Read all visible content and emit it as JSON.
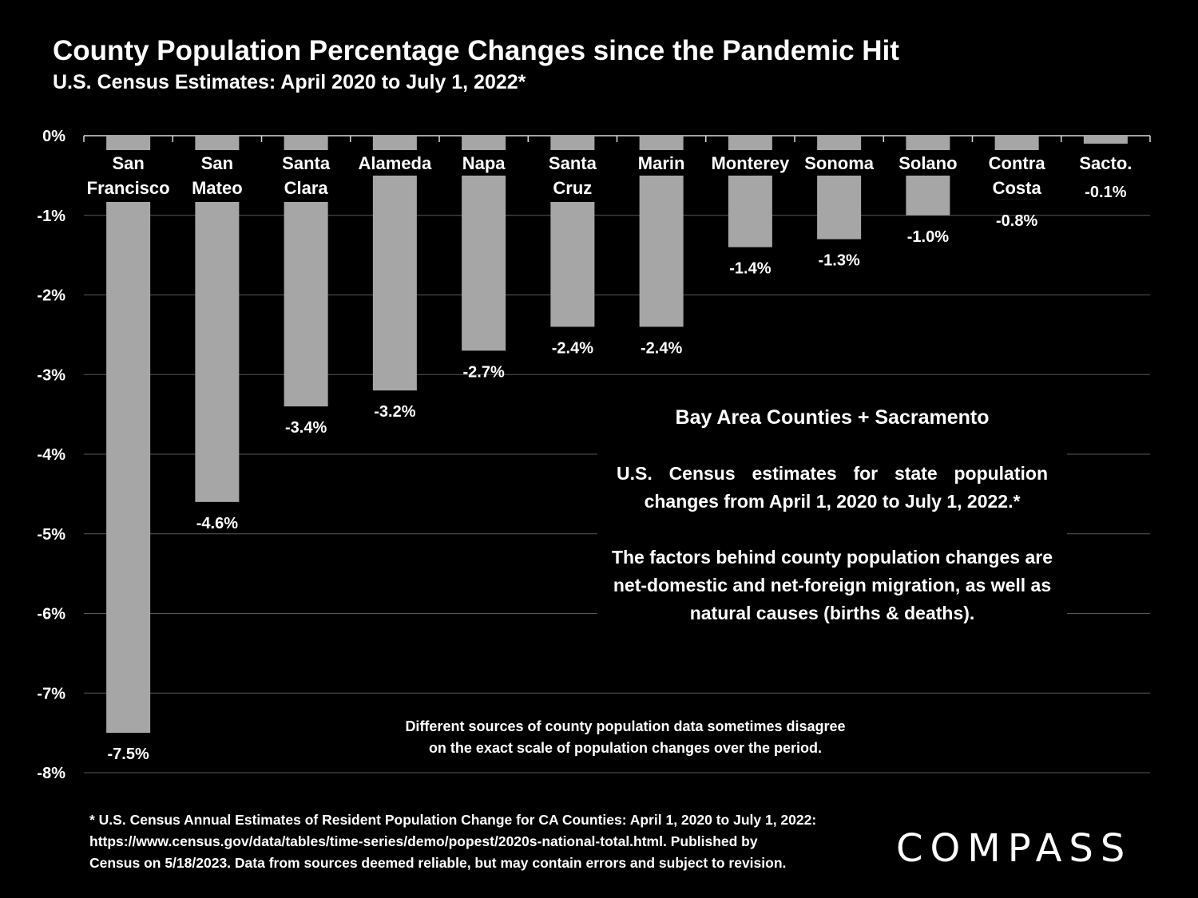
{
  "chart_data": {
    "type": "bar",
    "title": "County Population Percentage Changes since the Pandemic Hit",
    "subtitle": "U.S. Census Estimates: April 2020 to July 1, 2022*",
    "categories": [
      [
        "San",
        "Francisco"
      ],
      [
        "San",
        "Mateo"
      ],
      [
        "Santa",
        "Clara"
      ],
      [
        "Alameda"
      ],
      [
        "Napa"
      ],
      [
        "Santa",
        "Cruz"
      ],
      [
        "Marin"
      ],
      [
        "Monterey"
      ],
      [
        "Sonoma"
      ],
      [
        "Solano"
      ],
      [
        "Contra",
        "Costa"
      ],
      [
        "Sacto."
      ]
    ],
    "values": [
      -7.5,
      -4.6,
      -3.4,
      -3.2,
      -2.7,
      -2.4,
      -2.4,
      -1.4,
      -1.3,
      -1.0,
      -0.8,
      -0.1
    ],
    "value_labels": [
      "-7.5%",
      "-4.6%",
      "-3.4%",
      "-3.2%",
      "-2.7%",
      "-2.4%",
      "-2.4%",
      "-1.4%",
      "-1.3%",
      "-1.0%",
      "-0.8%",
      "-0.1%"
    ],
    "y_ticks": [
      0,
      -1,
      -2,
      -3,
      -4,
      -5,
      -6,
      -7,
      -8
    ],
    "y_tick_labels": [
      "0%",
      "-1%",
      "-2%",
      "-3%",
      "-4%",
      "-5%",
      "-6%",
      "-7%",
      "-8%"
    ],
    "ylim": [
      -8,
      0
    ],
    "grid": true,
    "colors": {
      "bar": "#a6a6a6",
      "background": "#000000",
      "text": "#ffffff",
      "grid": "#595959"
    }
  },
  "annotation": {
    "heading": "Bay Area Counties + Sacramento",
    "paragraph1": "U.S. Census estimates for state population changes from April 1, 2020 to July 1, 2022.*",
    "paragraph2": "The factors behind county population changes are net-domestic and net-foreign migration, as well as natural causes (births & deaths)."
  },
  "note": {
    "line1": "Different sources of county population data sometimes disagree",
    "line2": "on the exact scale of population changes over the period."
  },
  "footnote": {
    "line1": "* U.S. Census Annual Estimates of Resident Population Change for CA Counties: April 1, 2020 to July 1, 2022:",
    "line2": "https://www.census.gov/data/tables/time-series/demo/popest/2020s-national-total.html. Published by",
    "line3": "Census on 5/18/2023. Data from sources deemed reliable, but may contain errors and subject to revision."
  },
  "logo": {
    "text": "COMPASS"
  }
}
